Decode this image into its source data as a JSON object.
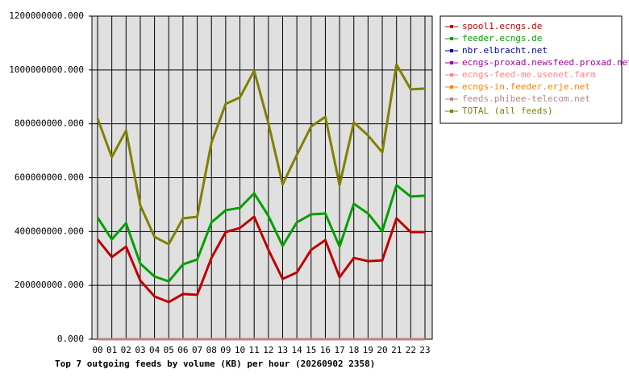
{
  "chart_data": {
    "type": "line",
    "title": "Top 7 outgoing feeds by volume (KB) per hour (20260902 2358)",
    "categories": [
      "00",
      "01",
      "02",
      "03",
      "04",
      "05",
      "06",
      "07",
      "08",
      "09",
      "10",
      "11",
      "12",
      "13",
      "14",
      "15",
      "16",
      "17",
      "18",
      "19",
      "20",
      "21",
      "22",
      "23"
    ],
    "ylim": [
      0,
      1200000000
    ],
    "yticks": [
      {
        "value": 0,
        "label": "0.000"
      },
      {
        "value": 200000000,
        "label": "200000000.000"
      },
      {
        "value": 400000000,
        "label": "400000000.000"
      },
      {
        "value": 600000000,
        "label": "600000000.000"
      },
      {
        "value": 800000000,
        "label": "800000000.000"
      },
      {
        "value": 1000000000,
        "label": "1000000000.000"
      },
      {
        "value": 1200000000,
        "label": "1200000000.000"
      }
    ],
    "grid": true,
    "legend": "right",
    "series": [
      {
        "name": "spool1.ecngs.de",
        "color": "#c00000",
        "values": [
          371000000,
          305000000,
          344000000,
          218000000,
          159000000,
          138000000,
          168000000,
          165000000,
          302000000,
          398000000,
          413000000,
          455000000,
          332000000,
          224000000,
          248000000,
          332000000,
          368000000,
          230000000,
          302000000,
          290000000,
          293000000,
          449000000,
          398000000,
          398000000
        ]
      },
      {
        "name": "feeder.ecngs.de",
        "color": "#00a000",
        "values": [
          452000000,
          371000000,
          431000000,
          281000000,
          233000000,
          215000000,
          278000000,
          296000000,
          434000000,
          479000000,
          488000000,
          542000000,
          458000000,
          347000000,
          434000000,
          464000000,
          467000000,
          344000000,
          503000000,
          467000000,
          401000000,
          572000000,
          530000000,
          533000000
        ]
      },
      {
        "name": "nbr.elbracht.net",
        "color": "#0000a0",
        "values": [
          0,
          0,
          0,
          0,
          0,
          0,
          0,
          0,
          0,
          0,
          0,
          0,
          0,
          0,
          0,
          0,
          0,
          0,
          0,
          0,
          0,
          0,
          0,
          0
        ]
      },
      {
        "name": "ecngs-proxad.newsfeed.proxad.net",
        "color": "#a000a0",
        "values": [
          0,
          0,
          0,
          0,
          0,
          0,
          0,
          0,
          0,
          0,
          0,
          0,
          0,
          0,
          0,
          0,
          0,
          0,
          0,
          0,
          0,
          0,
          0,
          0
        ]
      },
      {
        "name": "ecngs-feed-me.usenet.farm",
        "color": "#ff8080",
        "values": [
          0,
          0,
          0,
          0,
          0,
          0,
          0,
          0,
          0,
          0,
          0,
          0,
          0,
          0,
          0,
          0,
          0,
          0,
          0,
          0,
          0,
          0,
          0,
          0
        ]
      },
      {
        "name": "ecngs-in.feeder.erje.net",
        "color": "#ff8000",
        "values": [
          0,
          0,
          0,
          0,
          0,
          0,
          0,
          0,
          0,
          0,
          0,
          0,
          0,
          0,
          0,
          0,
          0,
          0,
          0,
          0,
          0,
          0,
          0,
          0
        ]
      },
      {
        "name": "feeds.phibee-telecom.net",
        "color": "#c08080",
        "values": [
          0,
          0,
          0,
          0,
          0,
          0,
          0,
          0,
          0,
          0,
          0,
          0,
          0,
          0,
          0,
          0,
          0,
          0,
          0,
          0,
          0,
          0,
          0,
          0
        ]
      },
      {
        "name": "TOTAL (all feeds)",
        "color": "#808000",
        "values": [
          820000000,
          676000000,
          775000000,
          497000000,
          380000000,
          353000000,
          449000000,
          455000000,
          730000000,
          874000000,
          898000000,
          997000000,
          802000000,
          575000000,
          685000000,
          790000000,
          826000000,
          572000000,
          805000000,
          757000000,
          694000000,
          1020000000,
          928000000,
          931000000
        ]
      }
    ]
  }
}
